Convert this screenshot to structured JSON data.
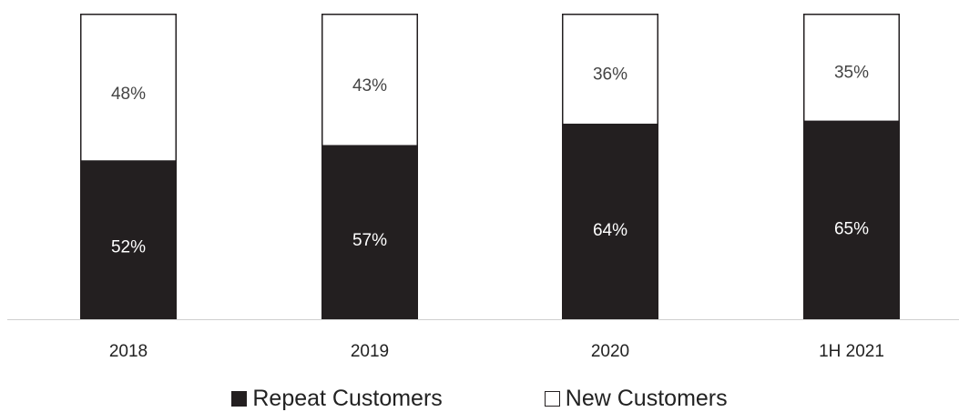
{
  "chart_data": {
    "type": "bar",
    "stacked": true,
    "categories": [
      "2018",
      "2019",
      "2020",
      "1H 2021"
    ],
    "series": [
      {
        "name": "Repeat Customers",
        "values": [
          52,
          57,
          64,
          65
        ],
        "labels": [
          "52%",
          "57%",
          "64%",
          "65%"
        ],
        "color": "#231f20",
        "label_color": "#ffffff"
      },
      {
        "name": "New Customers",
        "values": [
          48,
          43,
          36,
          35
        ],
        "labels": [
          "48%",
          "43%",
          "36%",
          "35%"
        ],
        "color": "#ffffff",
        "label_color": "#444444"
      }
    ],
    "ylim": [
      0,
      100
    ],
    "grid": false,
    "legend": "bottom",
    "xlabel": "",
    "ylabel": ""
  },
  "legend": {
    "repeat_label": "Repeat Customers",
    "new_label": "New Customers"
  }
}
